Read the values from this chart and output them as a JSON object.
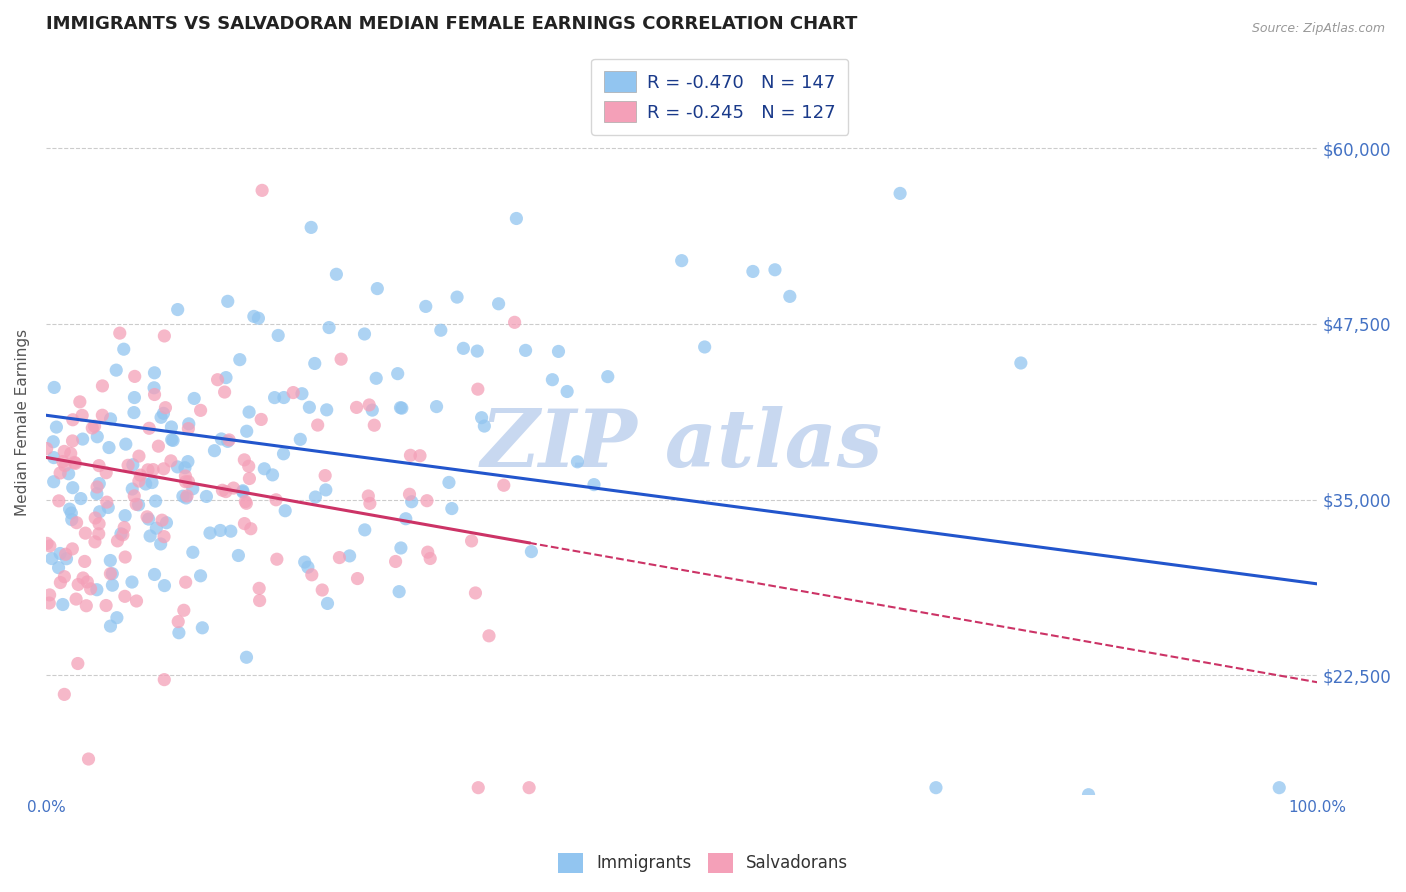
{
  "title": "IMMIGRANTS VS SALVADORAN MEDIAN FEMALE EARNINGS CORRELATION CHART",
  "source_text": "Source: ZipAtlas.com",
  "ylabel": "Median Female Earnings",
  "yticks": [
    22500,
    35000,
    47500,
    60000
  ],
  "ytick_labels": [
    "$22,500",
    "$35,000",
    "$47,500",
    "$60,000"
  ],
  "xlim": [
    0.0,
    1.0
  ],
  "ylim": [
    14000,
    67000
  ],
  "xtick_labels": [
    "0.0%",
    "100.0%"
  ],
  "immigrants_R": -0.47,
  "immigrants_N": 147,
  "salvadorans_R": -0.245,
  "salvadorans_N": 127,
  "immigrant_color": "#92C5F0",
  "salvadoran_color": "#F4A0B8",
  "immigrant_line_color": "#2255CC",
  "salvadoran_line_color": "#CC3366",
  "watermark_text": "ZIP atlas",
  "watermark_color": "#C8D8F0",
  "background_color": "#FFFFFF",
  "title_fontsize": 13,
  "label_fontsize": 11,
  "tick_label_color": "#4472C4",
  "grid_color": "#CCCCCC",
  "legend_text_color": "#1A3A8A"
}
